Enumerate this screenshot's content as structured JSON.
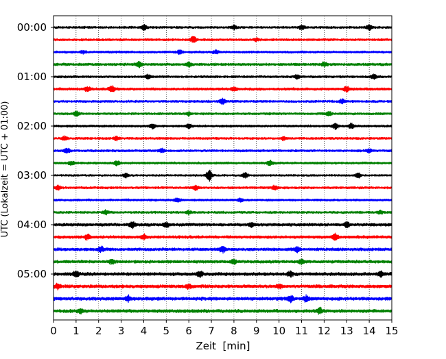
{
  "chart_data": {
    "type": "line",
    "title": "",
    "xlabel": "Zeit  [min]",
    "ylabel": "UTC (Lokalzeit = UTC + 01:00)",
    "xlim": [
      0,
      15
    ],
    "x_ticks": [
      "0",
      "1",
      "2",
      "3",
      "4",
      "5",
      "6",
      "7",
      "8",
      "9",
      "10",
      "11",
      "12",
      "13",
      "14",
      "15"
    ],
    "y_tick_labels": [
      "00:00",
      "01:00",
      "02:00",
      "03:00",
      "04:00",
      "05:00"
    ],
    "grid": "vertical dotted lines at each minute",
    "trace_minutes": 15,
    "trace_colors": [
      "#000000",
      "#ff0000",
      "#0000ff",
      "#008000"
    ],
    "series": [
      {
        "start": "00:00",
        "color": "#000000",
        "amplitude": 0.35,
        "events": [
          {
            "t": 4.0,
            "a": 0.8
          },
          {
            "t": 8.0,
            "a": 0.6
          },
          {
            "t": 11.0,
            "a": 0.7
          },
          {
            "t": 14.0,
            "a": 0.9
          }
        ]
      },
      {
        "start": "00:15",
        "color": "#ff0000",
        "amplitude": 0.35,
        "events": [
          {
            "t": 6.2,
            "a": 0.9
          },
          {
            "t": 9.0,
            "a": 0.4
          }
        ]
      },
      {
        "start": "00:30",
        "color": "#0000ff",
        "amplitude": 0.35,
        "events": [
          {
            "t": 1.3,
            "a": 0.4
          },
          {
            "t": 5.6,
            "a": 0.6
          },
          {
            "t": 7.2,
            "a": 0.5
          }
        ]
      },
      {
        "start": "00:45",
        "color": "#008000",
        "amplitude": 0.4,
        "events": [
          {
            "t": 3.8,
            "a": 0.8
          },
          {
            "t": 6.0,
            "a": 0.6
          },
          {
            "t": 12.0,
            "a": 0.6
          }
        ]
      },
      {
        "start": "01:00",
        "color": "#000000",
        "amplitude": 0.35,
        "events": [
          {
            "t": 4.2,
            "a": 0.5
          },
          {
            "t": 10.8,
            "a": 0.6
          },
          {
            "t": 14.2,
            "a": 0.7
          }
        ]
      },
      {
        "start": "01:15",
        "color": "#ff0000",
        "amplitude": 0.4,
        "events": [
          {
            "t": 1.5,
            "a": 0.7
          },
          {
            "t": 2.6,
            "a": 0.9
          },
          {
            "t": 8.0,
            "a": 0.6
          },
          {
            "t": 13.0,
            "a": 0.7
          }
        ]
      },
      {
        "start": "01:30",
        "color": "#0000ff",
        "amplitude": 0.35,
        "events": [
          {
            "t": 7.5,
            "a": 0.8
          },
          {
            "t": 12.8,
            "a": 0.6
          }
        ]
      },
      {
        "start": "01:45",
        "color": "#008000",
        "amplitude": 0.35,
        "events": [
          {
            "t": 1.0,
            "a": 0.7
          },
          {
            "t": 6.0,
            "a": 0.5
          },
          {
            "t": 12.2,
            "a": 0.6
          }
        ]
      },
      {
        "start": "02:00",
        "color": "#000000",
        "amplitude": 0.35,
        "events": [
          {
            "t": 4.4,
            "a": 0.7
          },
          {
            "t": 6.0,
            "a": 0.6
          },
          {
            "t": 12.5,
            "a": 0.8
          },
          {
            "t": 13.2,
            "a": 0.8
          }
        ]
      },
      {
        "start": "02:15",
        "color": "#ff0000",
        "amplitude": 0.35,
        "events": [
          {
            "t": 0.5,
            "a": 0.6
          },
          {
            "t": 2.8,
            "a": 0.6
          },
          {
            "t": 10.2,
            "a": 0.5
          }
        ]
      },
      {
        "start": "02:30",
        "color": "#0000ff",
        "amplitude": 0.35,
        "events": [
          {
            "t": 0.6,
            "a": 0.7
          },
          {
            "t": 4.8,
            "a": 0.6
          },
          {
            "t": 14.0,
            "a": 0.6
          }
        ]
      },
      {
        "start": "02:45",
        "color": "#008000",
        "amplitude": 0.35,
        "events": [
          {
            "t": 0.8,
            "a": 0.6
          },
          {
            "t": 2.8,
            "a": 0.6
          },
          {
            "t": 9.6,
            "a": 0.7
          }
        ]
      },
      {
        "start": "03:00",
        "color": "#000000",
        "amplitude": 0.3,
        "events": [
          {
            "t": 3.2,
            "a": 0.6
          },
          {
            "t": 6.9,
            "a": 1.7
          },
          {
            "t": 8.5,
            "a": 0.8
          },
          {
            "t": 13.5,
            "a": 0.7
          }
        ]
      },
      {
        "start": "03:15",
        "color": "#ff0000",
        "amplitude": 0.35,
        "events": [
          {
            "t": 0.2,
            "a": 0.6
          },
          {
            "t": 6.3,
            "a": 0.7
          },
          {
            "t": 9.8,
            "a": 0.6
          }
        ]
      },
      {
        "start": "03:30",
        "color": "#0000ff",
        "amplitude": 0.35,
        "events": [
          {
            "t": 5.5,
            "a": 0.6
          },
          {
            "t": 8.3,
            "a": 0.5
          }
        ]
      },
      {
        "start": "03:45",
        "color": "#008000",
        "amplitude": 0.35,
        "events": [
          {
            "t": 2.3,
            "a": 0.6
          },
          {
            "t": 6.0,
            "a": 0.5
          },
          {
            "t": 14.5,
            "a": 0.5
          }
        ]
      },
      {
        "start": "04:00",
        "color": "#000000",
        "amplitude": 0.45,
        "events": [
          {
            "t": 3.5,
            "a": 0.8
          },
          {
            "t": 5.0,
            "a": 0.7
          },
          {
            "t": 8.8,
            "a": 0.6
          },
          {
            "t": 13.0,
            "a": 0.7
          }
        ]
      },
      {
        "start": "04:15",
        "color": "#ff0000",
        "amplitude": 0.45,
        "events": [
          {
            "t": 1.5,
            "a": 0.7
          },
          {
            "t": 4.0,
            "a": 0.8
          },
          {
            "t": 12.5,
            "a": 0.9
          }
        ]
      },
      {
        "start": "04:30",
        "color": "#0000ff",
        "amplitude": 0.45,
        "events": [
          {
            "t": 2.1,
            "a": 0.8
          },
          {
            "t": 7.5,
            "a": 0.9
          },
          {
            "t": 10.8,
            "a": 0.8
          }
        ]
      },
      {
        "start": "04:45",
        "color": "#008000",
        "amplitude": 0.45,
        "events": [
          {
            "t": 2.6,
            "a": 0.7
          },
          {
            "t": 8.0,
            "a": 0.6
          },
          {
            "t": 11.0,
            "a": 0.6
          }
        ]
      },
      {
        "start": "05:00",
        "color": "#000000",
        "amplitude": 0.5,
        "events": [
          {
            "t": 1.0,
            "a": 0.8
          },
          {
            "t": 6.5,
            "a": 0.7
          },
          {
            "t": 10.5,
            "a": 0.7
          },
          {
            "t": 14.5,
            "a": 0.7
          }
        ]
      },
      {
        "start": "05:15",
        "color": "#ff0000",
        "amplitude": 0.5,
        "events": [
          {
            "t": 0.2,
            "a": 0.7
          },
          {
            "t": 6.0,
            "a": 0.6
          },
          {
            "t": 10.0,
            "a": 0.6
          }
        ]
      },
      {
        "start": "05:30",
        "color": "#0000ff",
        "amplitude": 0.5,
        "events": [
          {
            "t": 3.3,
            "a": 0.8
          },
          {
            "t": 10.5,
            "a": 0.9
          },
          {
            "t": 11.2,
            "a": 0.8
          }
        ]
      },
      {
        "start": "05:45",
        "color": "#008000",
        "amplitude": 0.5,
        "events": [
          {
            "t": 1.2,
            "a": 0.7
          },
          {
            "t": 11.8,
            "a": 0.8
          }
        ]
      }
    ]
  }
}
